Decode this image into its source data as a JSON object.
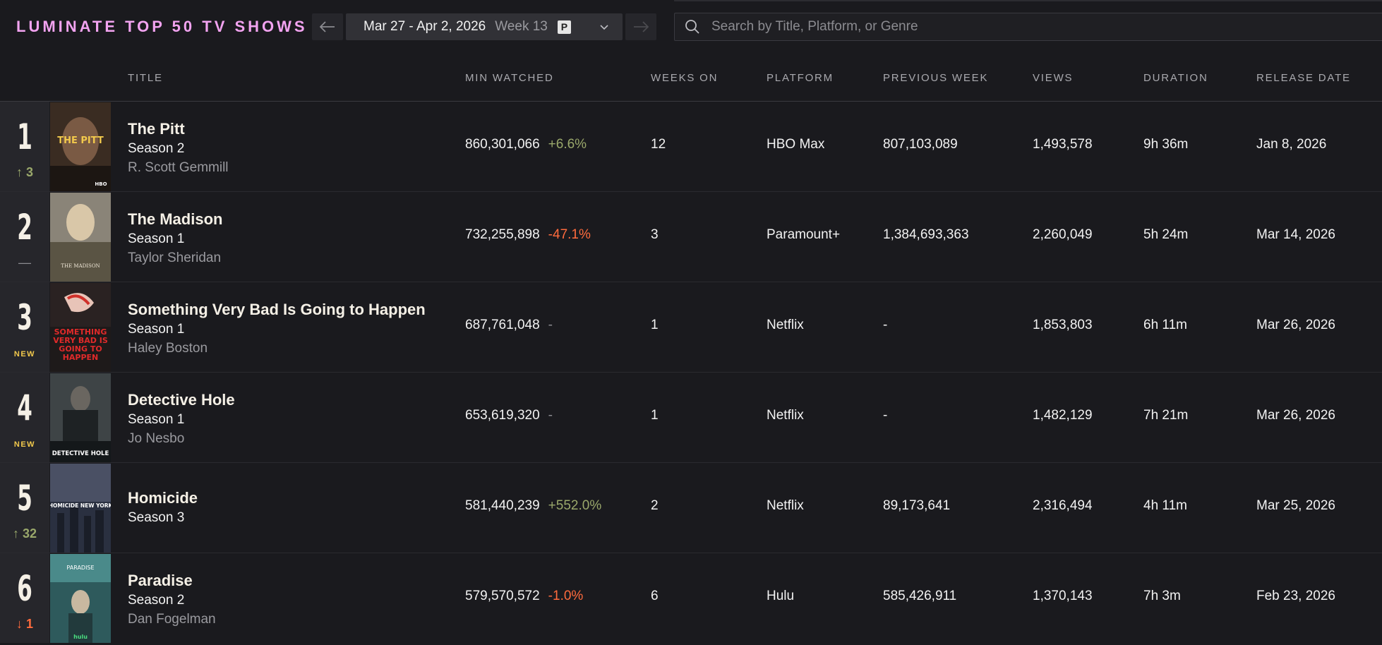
{
  "app_title": "LUMINATE TOP 50 TV SHOWS",
  "week_selector": {
    "prev_icon": "arrow-left-icon",
    "next_icon": "arrow-right-icon",
    "date_range": "Mar 27 - Apr 2, 2026",
    "week_label": "Week 13",
    "badge": "P"
  },
  "search": {
    "placeholder": "Search by Title, Platform, or Genre"
  },
  "columns": {
    "title": "TITLE",
    "min_watched": "MIN WATCHED",
    "weeks_on": "WEEKS ON",
    "platform": "PLATFORM",
    "previous_week": "PREVIOUS WEEK",
    "views": "VIEWS",
    "duration": "DURATION",
    "release_date": "RELEASE DATE"
  },
  "colors": {
    "brand": "#f2a3f0",
    "positive": "#9aa86b",
    "negative": "#ff6b3d",
    "new_badge": "#f2c94c",
    "background": "#1a1a1e"
  },
  "rows": [
    {
      "rank": "1",
      "movement": "↑ 3",
      "title": "The Pitt",
      "season": "Season 2",
      "creator": "R. Scott Gemmill",
      "min_watched": "860,301,066",
      "change": "+6.6%",
      "weeks_on": "12",
      "platform": "HBO Max",
      "previous_week": "807,103,089",
      "views": "1,493,578",
      "duration": "9h 36m",
      "release_date": "Jan 8, 2026"
    },
    {
      "rank": "2",
      "movement": "—",
      "title": "The Madison",
      "season": "Season 1",
      "creator": "Taylor Sheridan",
      "min_watched": "732,255,898",
      "change": "-47.1%",
      "weeks_on": "3",
      "platform": "Paramount+",
      "previous_week": "1,384,693,363",
      "views": "2,260,049",
      "duration": "5h 24m",
      "release_date": "Mar 14, 2026"
    },
    {
      "rank": "3",
      "movement": "NEW",
      "title": "Something Very Bad Is Going to Happen",
      "season": "Season 1",
      "creator": "Haley Boston",
      "min_watched": "687,761,048",
      "change": "-",
      "weeks_on": "1",
      "platform": "Netflix",
      "previous_week": "-",
      "views": "1,853,803",
      "duration": "6h 11m",
      "release_date": "Mar 26, 2026"
    },
    {
      "rank": "4",
      "movement": "NEW",
      "title": "Detective Hole",
      "season": "Season 1",
      "creator": "Jo Nesbo",
      "min_watched": "653,619,320",
      "change": "-",
      "weeks_on": "1",
      "platform": "Netflix",
      "previous_week": "-",
      "views": "1,482,129",
      "duration": "7h 21m",
      "release_date": "Mar 26, 2026"
    },
    {
      "rank": "5",
      "movement": "↑ 32",
      "title": "Homicide",
      "season": "Season 3",
      "creator": "",
      "min_watched": "581,440,239",
      "change": "+552.0%",
      "weeks_on": "2",
      "platform": "Netflix",
      "previous_week": "89,173,641",
      "views": "2,316,494",
      "duration": "4h 11m",
      "release_date": "Mar 25, 2026"
    },
    {
      "rank": "6",
      "movement": "↓ 1",
      "title": "Paradise",
      "season": "Season 2",
      "creator": "Dan Fogelman",
      "min_watched": "579,570,572",
      "change": "-1.0%",
      "weeks_on": "6",
      "platform": "Hulu",
      "previous_week": "585,426,911",
      "views": "1,370,143",
      "duration": "7h 3m",
      "release_date": "Feb 23, 2026"
    }
  ],
  "posters": [
    {
      "icon": "the-pitt-poster-image",
      "text": "THE PITT",
      "brand": "HBO"
    },
    {
      "icon": "the-madison-poster-image",
      "text": "THE MADISON"
    },
    {
      "icon": "something-very-bad-poster-image",
      "text": "SOMETHING VERY BAD IS GOING TO HAPPEN"
    },
    {
      "icon": "detective-hole-poster-image",
      "text": "DETECTIVE HOLE"
    },
    {
      "icon": "homicide-poster-image",
      "text": "HOMICIDE NEW YORK"
    },
    {
      "icon": "paradise-poster-image",
      "text": "PARADISE",
      "brand": "hulu"
    }
  ]
}
